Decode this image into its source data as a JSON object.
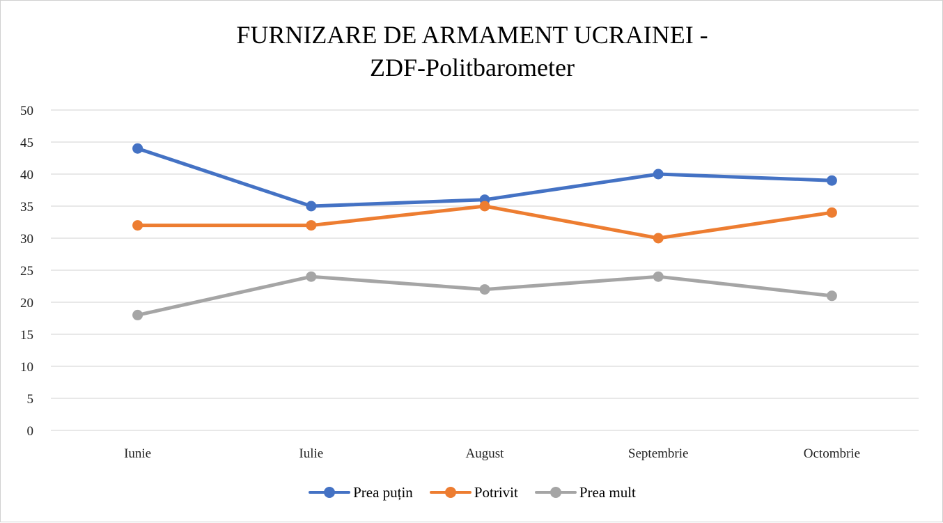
{
  "chart_data": {
    "type": "line",
    "title_lines": [
      "FURNIZARE DE ARMAMENT UCRAINEI -",
      "ZDF-Politbarometer"
    ],
    "categories": [
      "Iunie",
      "Iulie",
      "August",
      "Septembrie",
      "Octombrie"
    ],
    "series": [
      {
        "name": "Prea puțin",
        "color": "#4472c4",
        "values": [
          44,
          35,
          36,
          40,
          39
        ]
      },
      {
        "name": "Potrivit",
        "color": "#ed7d31",
        "values": [
          32,
          32,
          35,
          30,
          34
        ]
      },
      {
        "name": "Prea mult",
        "color": "#a5a5a5",
        "values": [
          18,
          24,
          22,
          24,
          21
        ]
      }
    ],
    "ylim": [
      0,
      50
    ],
    "yticks": [
      "0",
      "5",
      "10",
      "15",
      "20",
      "25",
      "30",
      "35",
      "40",
      "45",
      "50"
    ],
    "grid": true,
    "legend_position": "bottom"
  }
}
